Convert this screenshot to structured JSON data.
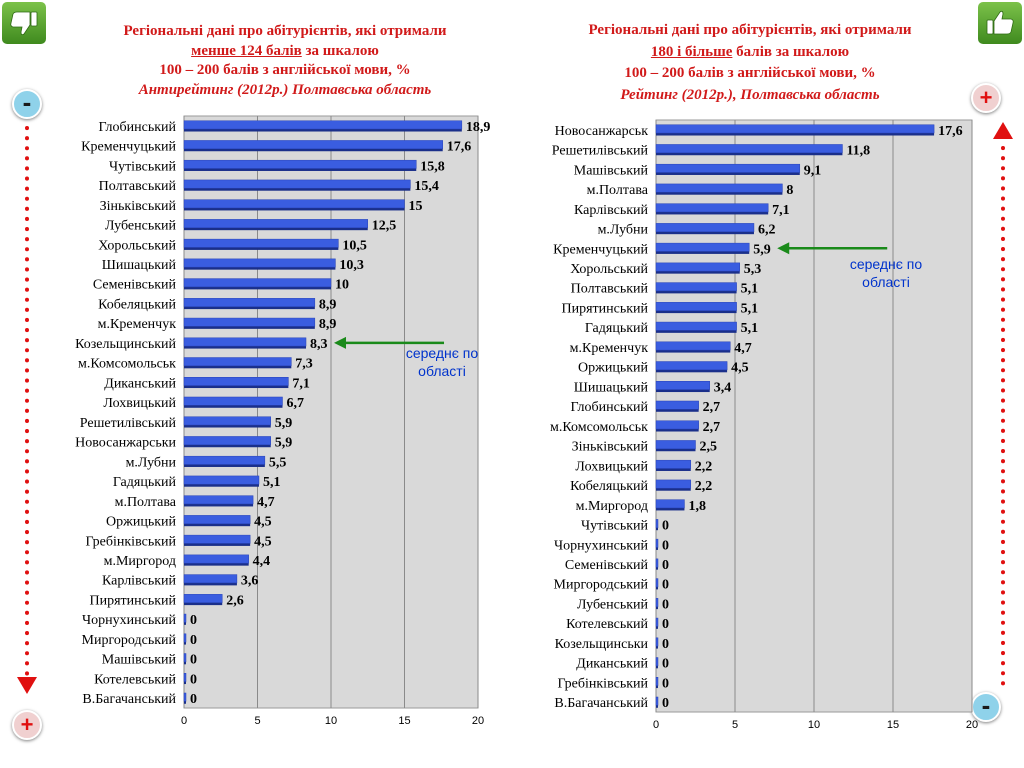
{
  "left": {
    "title": {
      "line1": "Регіональні дані про абітурієнтів, які отримали",
      "line2_underlined": "менше 124 балів",
      "line2_rest": " за шкалою",
      "line3": "100 – 200 балів з англійської мови, %",
      "line4": "Антирейтинг (2012р.) Полтавська область"
    },
    "annotation": [
      "середнє по",
      "області"
    ],
    "badge_top": "-",
    "badge_bottom": "+"
  },
  "right": {
    "title": {
      "line1": "Регіональні дані про абітурієнтів, які отримали",
      "line2_underlined": "180 і більше",
      "line2_rest": " балів за шкалою",
      "line3": "100 – 200 балів з англійської мови, %",
      "line4": "Рейтинг (2012р.), Полтавська область"
    },
    "annotation": [
      "середнє по",
      "області"
    ],
    "badge_top": "+",
    "badge_bottom": "-"
  },
  "icons": {
    "left_thumb": "thumbs-down-icon",
    "right_thumb": "thumbs-up-icon",
    "arrow_color": "#e01010",
    "thumb_color": "#5aa02c",
    "bar_color": "#3a5de0",
    "plot_bg": "#d9d9d9",
    "annotation_arrow_color": "#1a8a1a"
  },
  "chart_data": [
    {
      "type": "bar",
      "orientation": "horizontal",
      "categories": [
        "Глобинський",
        "Кременчуцький",
        "Чутівський",
        "Полтавський",
        "Зіньківський",
        "Лубенський",
        "Хорольський",
        "Шишацький",
        "Семенівський",
        "Кобеляцький",
        "м.Кременчук",
        "Козельщинський",
        "м.Комсомольськ",
        "Диканський",
        "Лохвицький",
        "Решетилівський",
        "Новосанжарськи",
        "м.Лубни",
        "Гадяцький",
        "м.Полтава",
        "Оржицький",
        "Гребінківський",
        "м.Миргород",
        "Карлівський",
        "Пирятинський",
        "Чорнухинський",
        "Миргородський",
        "Машівський",
        "Котелевський",
        "В.Багачанський"
      ],
      "values": [
        18.9,
        17.6,
        15.8,
        15.4,
        15,
        12.5,
        10.5,
        10.3,
        10,
        8.9,
        8.9,
        8.3,
        7.3,
        7.1,
        6.7,
        5.9,
        5.9,
        5.5,
        5.1,
        4.7,
        4.5,
        4.5,
        4.4,
        3.6,
        2.6,
        0,
        0,
        0,
        0,
        0
      ],
      "value_labels": [
        "18,9",
        "17,6",
        "15,8",
        "15,4",
        "15",
        "12,5",
        "10,5",
        "10,3",
        "10",
        "8,9",
        "8,9",
        "8,3",
        "7,3",
        "7,1",
        "6,7",
        "5,9",
        "5,9",
        "5,5",
        "5,1",
        "4,7",
        "4,5",
        "4,5",
        "4,4",
        "3,6",
        "2,6",
        "0",
        "0",
        "0",
        "0",
        "0"
      ],
      "xlim": [
        0,
        20
      ],
      "xticks": [
        "0",
        "5",
        "10",
        "15",
        "20"
      ],
      "grid": true,
      "average_marker_category": "Козельщинський"
    },
    {
      "type": "bar",
      "orientation": "horizontal",
      "categories": [
        "Новосанжарськ",
        "Решетилівський",
        "Машівський",
        "м.Полтава",
        "Карлівський",
        "м.Лубни",
        "Кременчуцький",
        "Хорольський",
        "Полтавський",
        "Пирятинський",
        "Гадяцький",
        "м.Кременчук",
        "Оржицький",
        "Шишацький",
        "Глобинський",
        "м.Комсомольськ",
        "Зіньківський",
        "Лохвицький",
        "Кобеляцький",
        "м.Миргород",
        "Чутівський",
        "Чорнухинський",
        "Семенівський",
        "Миргородський",
        "Лубенський",
        "Котелевський",
        "Козельщинськи",
        "Диканський",
        "Гребінківський",
        "В.Багачанський"
      ],
      "values": [
        17.6,
        11.8,
        9.1,
        8,
        7.1,
        6.2,
        5.9,
        5.3,
        5.1,
        5.1,
        5.1,
        4.7,
        4.5,
        3.4,
        2.7,
        2.7,
        2.5,
        2.2,
        2.2,
        1.8,
        0,
        0,
        0,
        0,
        0,
        0,
        0,
        0,
        0,
        0
      ],
      "value_labels": [
        "17,6",
        "11,8",
        "9,1",
        "8",
        "7,1",
        "6,2",
        "5,9",
        "5,3",
        "5,1",
        "5,1",
        "5,1",
        "4,7",
        "4,5",
        "3,4",
        "2,7",
        "2,7",
        "2,5",
        "2,2",
        "2,2",
        "1,8",
        "0",
        "0",
        "0",
        "0",
        "0",
        "0",
        "0",
        "0",
        "0",
        "0"
      ],
      "xlim": [
        0,
        20
      ],
      "xticks": [
        "0",
        "5",
        "10",
        "15",
        "20"
      ],
      "grid": true,
      "average_marker_category": "Кременчуцький"
    }
  ]
}
